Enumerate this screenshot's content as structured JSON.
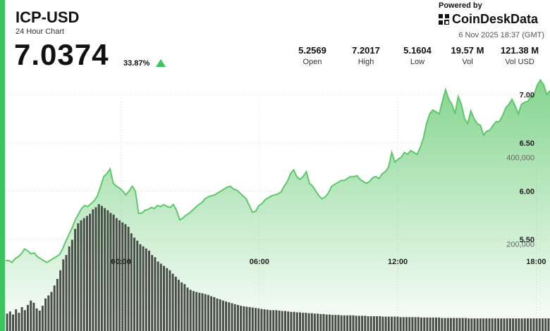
{
  "header": {
    "pair": "ICP-USD",
    "subtitle": "24 Hour Chart",
    "price": "7.0374",
    "change": "33.87%",
    "powered_by": "Powered by",
    "brand": "CoinDeskData",
    "timestamp": "6 Nov 2025 18:37 (GMT)"
  },
  "stats": [
    {
      "value": "5.2569",
      "label": "Open"
    },
    {
      "value": "7.2017",
      "label": "High"
    },
    {
      "value": "5.1604",
      "label": "Low"
    },
    {
      "value": "19.57 M",
      "label": "Vol"
    },
    {
      "value": "121.38 M",
      "label": "Vol USD"
    }
  ],
  "colors": {
    "accent": "#3cc45e",
    "line": "#5cc86a",
    "area": "#8fd898",
    "bars": "#4a4e49"
  },
  "chart_data": {
    "type": "line",
    "price_axis": {
      "ticks": [
        "7.00",
        "6.50",
        "6.00",
        "5.50"
      ],
      "tick_values": [
        7.0,
        6.5,
        6.0,
        5.5
      ],
      "range": [
        4.55,
        7.25
      ]
    },
    "volume_axis": {
      "ticks": [
        "400,000",
        "200,000"
      ],
      "tick_values": [
        400000,
        200000
      ],
      "range": [
        0,
        600000
      ]
    },
    "x_ticks": [
      "00:00",
      "06:00",
      "12:00",
      "18:00"
    ],
    "x_tick_hours": [
      0,
      6,
      12,
      18
    ],
    "x_range_hours": [
      -5,
      18.6
    ],
    "price": [
      5.28,
      5.28,
      5.26,
      5.3,
      5.32,
      5.35,
      5.4,
      5.38,
      5.35,
      5.36,
      5.32,
      5.3,
      5.28,
      5.26,
      5.28,
      5.3,
      5.32,
      5.34,
      5.4,
      5.48,
      5.55,
      5.62,
      5.7,
      5.76,
      5.82,
      5.85,
      5.84,
      5.87,
      5.9,
      5.95,
      6.05,
      6.15,
      6.18,
      6.23,
      6.08,
      6.05,
      6.03,
      6.0,
      5.96,
      6.0,
      6.05,
      6.0,
      5.77,
      5.77,
      5.8,
      5.81,
      5.83,
      5.82,
      5.85,
      5.84,
      5.86,
      5.84,
      5.83,
      5.86,
      5.8,
      5.7,
      5.72,
      5.75,
      5.77,
      5.8,
      5.83,
      5.86,
      5.88,
      5.92,
      5.94,
      5.95,
      5.96,
      5.98,
      6.0,
      6.02,
      6.04,
      6.05,
      6.02,
      6.01,
      5.98,
      5.95,
      5.92,
      5.85,
      5.78,
      5.79,
      5.85,
      5.87,
      5.91,
      5.93,
      5.95,
      5.96,
      5.97,
      5.99,
      6.05,
      6.1,
      6.18,
      6.22,
      6.15,
      6.12,
      6.15,
      6.2,
      6.08,
      6.05,
      6.0,
      5.95,
      5.92,
      5.94,
      5.98,
      6.05,
      6.07,
      6.09,
      6.11,
      6.11,
      6.13,
      6.15,
      6.15,
      6.16,
      6.12,
      6.1,
      6.08,
      6.1,
      6.14,
      6.15,
      6.13,
      6.18,
      6.2,
      6.25,
      6.4,
      6.3,
      6.33,
      6.35,
      6.4,
      6.38,
      6.42,
      6.4,
      6.38,
      6.45,
      6.55,
      6.7,
      6.8,
      6.84,
      6.82,
      6.8,
      6.93,
      7.05,
      6.95,
      6.9,
      6.8,
      6.98,
      6.9,
      6.75,
      6.7,
      6.83,
      6.75,
      6.7,
      6.68,
      6.58,
      6.62,
      6.63,
      6.68,
      6.72,
      6.72,
      6.78,
      6.86,
      6.9,
      6.95,
      6.88,
      6.8,
      6.9,
      6.92,
      6.93,
      6.98,
      7.0,
      7.1,
      7.15,
      7.1,
      7.0,
      7.04
    ],
    "volume": [
      40000,
      45000,
      38000,
      50000,
      42000,
      55000,
      48000,
      60000,
      70000,
      65000,
      52000,
      47000,
      58000,
      75000,
      82000,
      90000,
      105000,
      120000,
      140000,
      165000,
      175000,
      195000,
      210000,
      235000,
      248000,
      255000,
      260000,
      265000,
      270000,
      280000,
      285000,
      292000,
      288000,
      283000,
      278000,
      272000,
      268000,
      260000,
      255000,
      250000,
      246000,
      240000,
      225000,
      215000,
      208000,
      200000,
      195000,
      190000,
      185000,
      175000,
      170000,
      160000,
      155000,
      150000,
      145000,
      140000,
      132000,
      125000,
      118000,
      112000,
      108000,
      100000,
      95000,
      92000,
      90000,
      88000,
      87000,
      85000,
      83000,
      80000,
      78000,
      75000,
      73000,
      70000,
      68000,
      66000,
      64000,
      62000,
      60000,
      58000,
      57000,
      56000,
      55000,
      54000,
      53000,
      52000,
      51000,
      50000,
      49000,
      48000,
      48000,
      48000,
      47000,
      46000,
      46000,
      45000,
      44000,
      44000,
      43000,
      43000,
      42000,
      42000,
      41000,
      41000,
      40000,
      40000,
      39000,
      39000,
      38000,
      38000,
      37000,
      37000,
      37000,
      36000,
      36000,
      36000,
      36000,
      36000,
      35000,
      35000,
      35000,
      35000,
      34000,
      34000,
      34000,
      34000,
      34000,
      33000,
      33000,
      33000,
      33000,
      33000,
      33000,
      32000,
      32000,
      32000,
      32000,
      32000,
      32000,
      32000,
      31000,
      31000,
      31000,
      31000,
      31000,
      31000,
      31000,
      30000,
      30000,
      30000,
      30000,
      30000,
      30000,
      30000,
      30000,
      30000,
      29000,
      29000,
      29000,
      29000,
      29000,
      29000,
      29000,
      29000,
      29000,
      29000,
      29000,
      29000,
      29000,
      29000,
      29000,
      29000,
      29000,
      29000,
      29000,
      29000,
      29000,
      29000,
      29000,
      29000,
      29000,
      29000,
      29000,
      29000
    ]
  }
}
